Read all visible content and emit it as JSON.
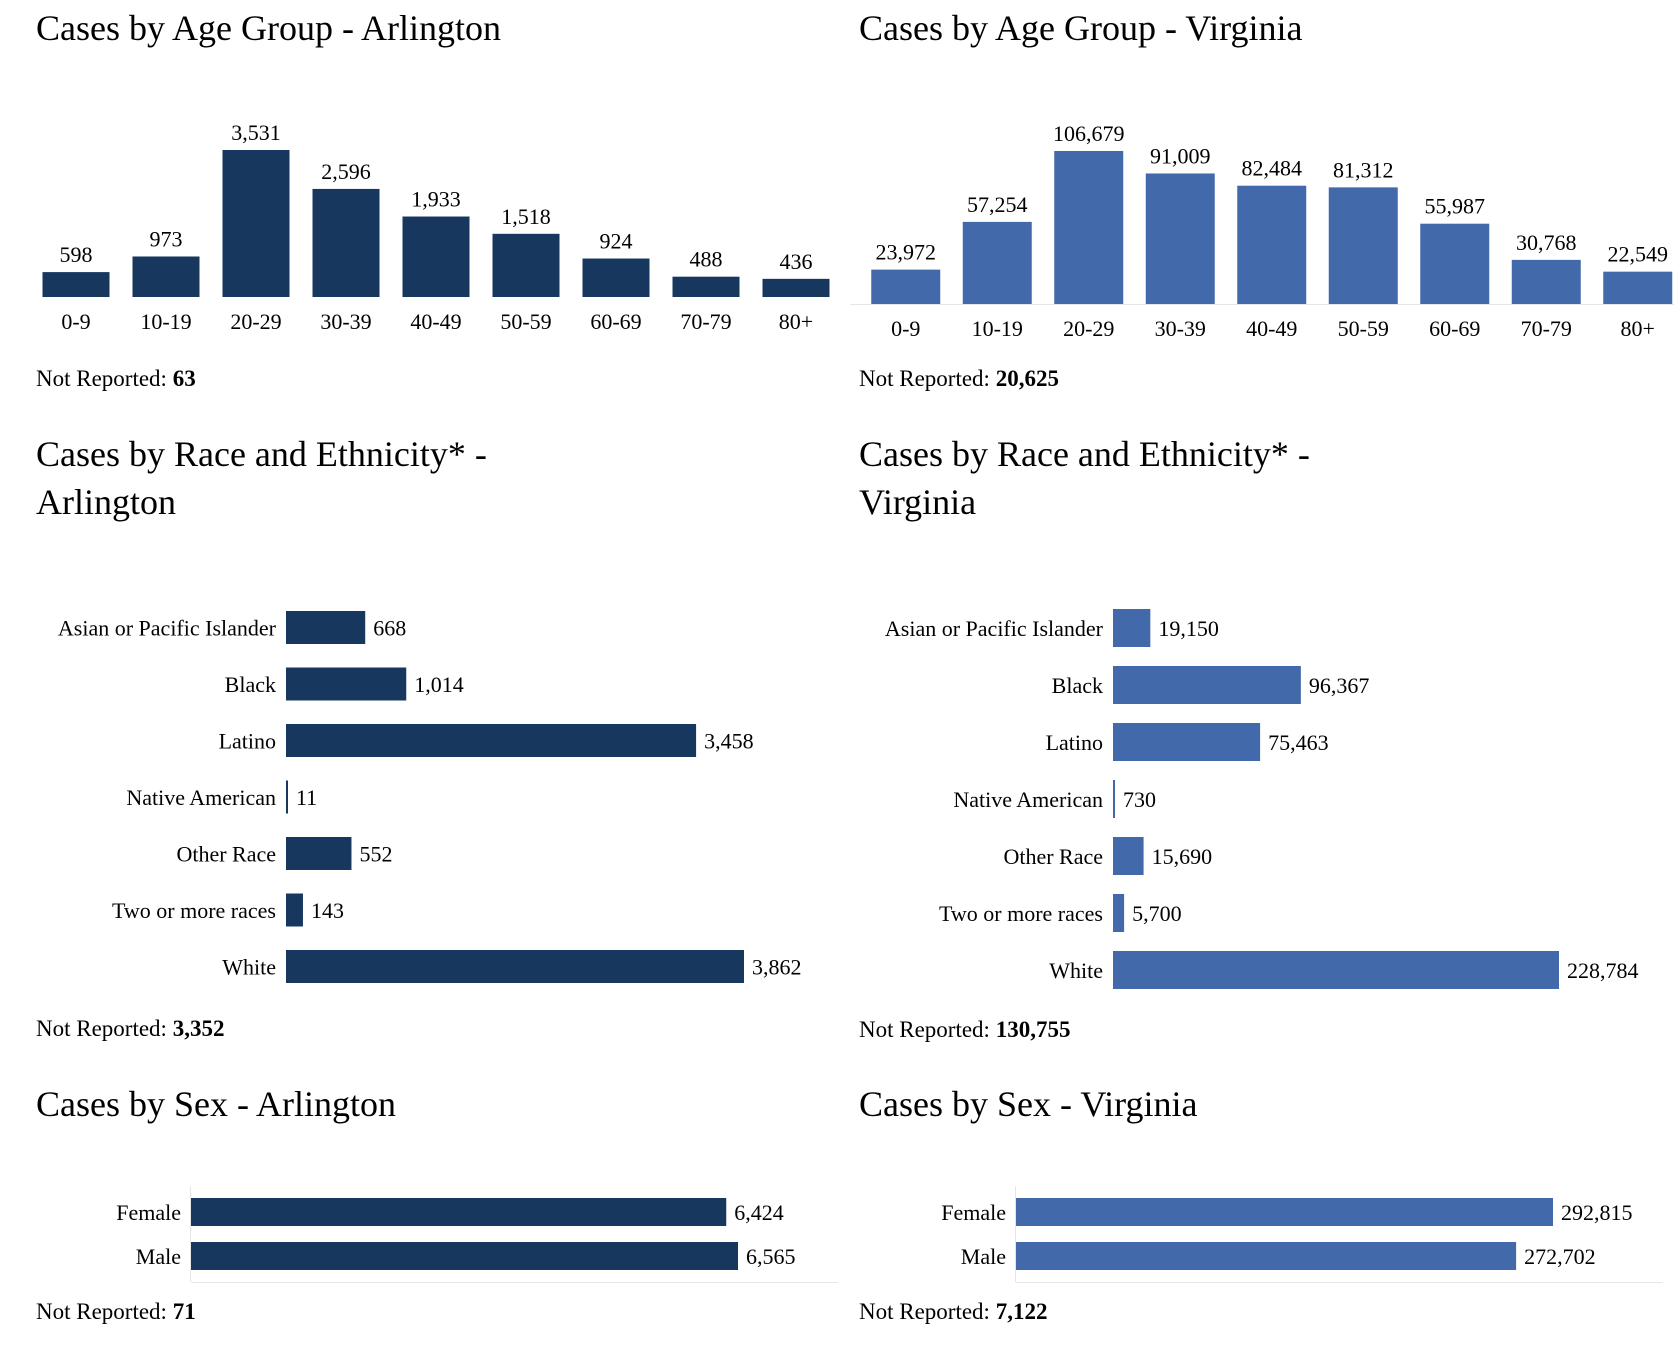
{
  "colors": {
    "arlington": "#17375e",
    "virginia": "#426aaa",
    "axis": "#e6e6e6"
  },
  "charts": [
    {
      "id": "age-arlington",
      "title": "Cases by Age Group - Arlington",
      "not_reported_label": "Not Reported:",
      "not_reported_value": "63",
      "chart_data": {
        "type": "bar",
        "orientation": "vertical",
        "categories": [
          "0-9",
          "10-19",
          "20-29",
          "30-39",
          "40-49",
          "50-59",
          "60-69",
          "70-79",
          "80+"
        ],
        "values": [
          598,
          973,
          3531,
          2596,
          1933,
          1518,
          924,
          488,
          436
        ],
        "value_labels": [
          "598",
          "973",
          "3,531",
          "2,596",
          "1,933",
          "1,518",
          "924",
          "488",
          "436"
        ]
      }
    },
    {
      "id": "age-virginia",
      "title": "Cases by Age Group - Virginia",
      "not_reported_label": "Not Reported:",
      "not_reported_value": "20,625",
      "chart_data": {
        "type": "bar",
        "orientation": "vertical",
        "categories": [
          "0-9",
          "10-19",
          "20-29",
          "30-39",
          "40-49",
          "50-59",
          "60-69",
          "70-79",
          "80+"
        ],
        "values": [
          23972,
          57254,
          106679,
          91009,
          82484,
          81312,
          55987,
          30768,
          22549
        ],
        "value_labels": [
          "23,972",
          "57,254",
          "106,679",
          "91,009",
          "82,484",
          "81,312",
          "55,987",
          "30,768",
          "22,549"
        ]
      }
    },
    {
      "id": "race-arlington",
      "title": "Cases by Race and Ethnicity* - Arlington",
      "not_reported_label": "Not Reported:",
      "not_reported_value": "3,352",
      "chart_data": {
        "type": "bar",
        "orientation": "horizontal",
        "categories": [
          "Asian or Pacific Islander",
          "Black",
          "Latino",
          "Native American",
          "Other Race",
          "Two or more races",
          "White"
        ],
        "values": [
          668,
          1014,
          3458,
          11,
          552,
          143,
          3862
        ],
        "value_labels": [
          "668",
          "1,014",
          "3,458",
          "11",
          "552",
          "143",
          "3,862"
        ]
      }
    },
    {
      "id": "race-virginia",
      "title": "Cases by Race and Ethnicity* - Virginia",
      "not_reported_label": "Not Reported:",
      "not_reported_value": "130,755",
      "chart_data": {
        "type": "bar",
        "orientation": "horizontal",
        "categories": [
          "Asian or Pacific Islander",
          "Black",
          "Latino",
          "Native American",
          "Other Race",
          "Two or more races",
          "White"
        ],
        "values": [
          19150,
          96367,
          75463,
          730,
          15690,
          5700,
          228784
        ],
        "value_labels": [
          "19,150",
          "96,367",
          "75,463",
          "730",
          "15,690",
          "5,700",
          "228,784"
        ]
      }
    },
    {
      "id": "sex-arlington",
      "title": "Cases by Sex - Arlington",
      "not_reported_label": "Not Reported:",
      "not_reported_value": "71",
      "chart_data": {
        "type": "bar",
        "orientation": "horizontal",
        "categories": [
          "Female",
          "Male"
        ],
        "values": [
          6424,
          6565
        ],
        "value_labels": [
          "6,424",
          "6,565"
        ]
      }
    },
    {
      "id": "sex-virginia",
      "title": "Cases by Sex - Virginia",
      "not_reported_label": "Not Reported:",
      "not_reported_value": "7,122",
      "chart_data": {
        "type": "bar",
        "orientation": "horizontal",
        "categories": [
          "Female",
          "Male"
        ],
        "values": [
          292815,
          272702
        ],
        "value_labels": [
          "292,815",
          "272,702"
        ]
      }
    }
  ]
}
